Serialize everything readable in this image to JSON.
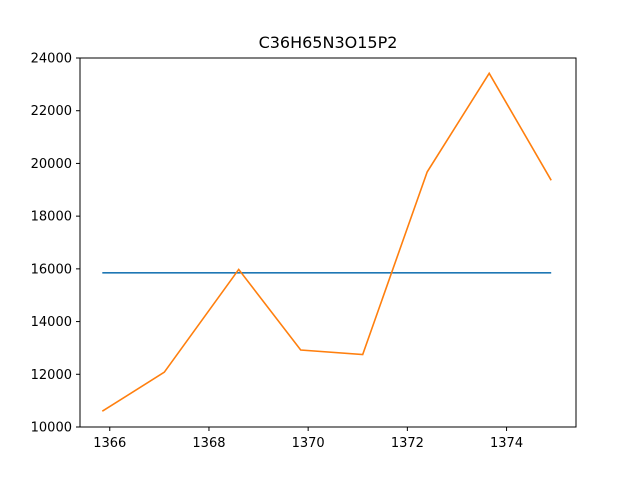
{
  "chart_data": {
    "type": "line",
    "title": "C36H65N3O15P2",
    "xlabel": "",
    "ylabel": "",
    "xlim": [
      1365.4,
      1375.4
    ],
    "ylim": [
      10000,
      24000
    ],
    "xticks": [
      1366,
      1368,
      1370,
      1372,
      1374
    ],
    "yticks": [
      10000,
      12000,
      14000,
      16000,
      18000,
      20000,
      22000,
      24000
    ],
    "grid": false,
    "series": [
      {
        "color": "#1f77b4",
        "x": [
          1365.85,
          1374.9
        ],
        "y": [
          15850,
          15850
        ]
      },
      {
        "color": "#ff7f0e",
        "x": [
          1365.85,
          1367.1,
          1368.6,
          1369.85,
          1371.1,
          1372.4,
          1373.65,
          1374.9
        ],
        "y": [
          10600,
          12080,
          15980,
          12920,
          12750,
          19680,
          23420,
          19360
        ]
      }
    ]
  }
}
